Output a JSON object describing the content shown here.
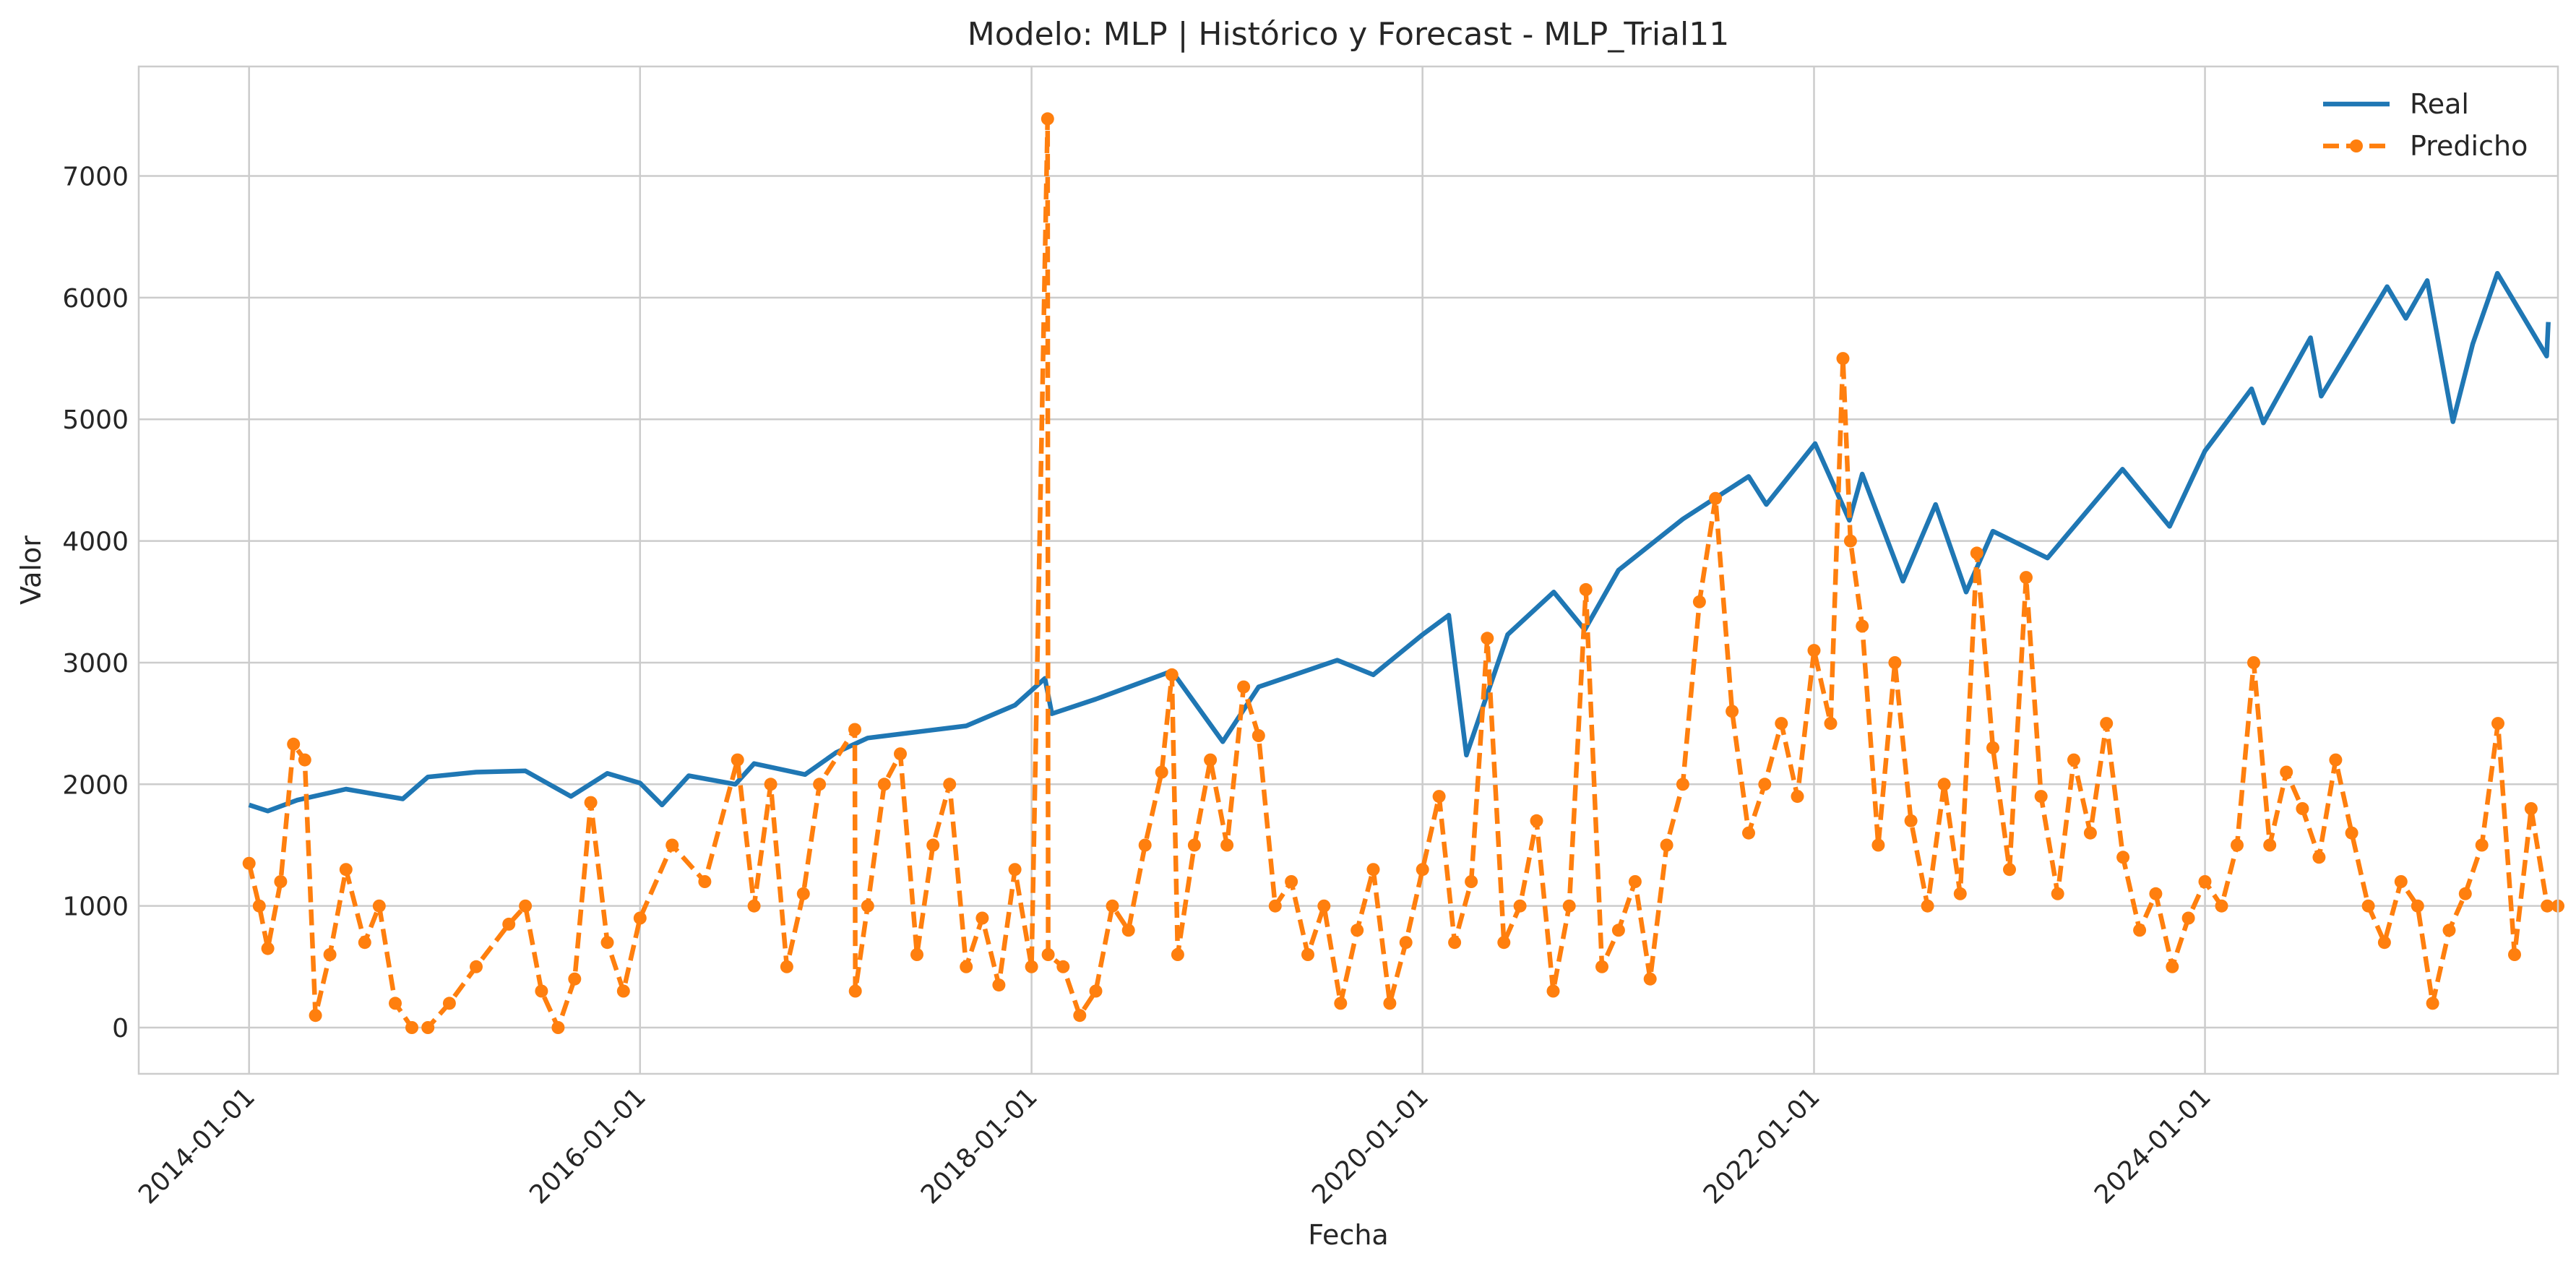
{
  "chart_data": {
    "type": "line",
    "title": "Modelo: MLP | Histórico y Forecast - MLP_Trial11",
    "xlabel": "Fecha",
    "ylabel": "Valor",
    "x_range": [
      "2013-06-09",
      "2025-10-21"
    ],
    "ylim": [
      -380,
      7900
    ],
    "x_ticks": [
      "2014-01-01",
      "2016-01-01",
      "2018-01-01",
      "2020-01-01",
      "2022-01-01",
      "2024-01-01"
    ],
    "y_ticks": [
      0,
      1000,
      2000,
      3000,
      4000,
      5000,
      6000,
      7000
    ],
    "grid": true,
    "legend": "top-right",
    "colors": {
      "real": "#1f77b4",
      "predicho": "#ff7f0e",
      "grid": "#cccccc",
      "frame": "#cccccc"
    },
    "series": [
      {
        "name": "Real",
        "style": "solid",
        "points": [
          [
            "2014-01-01",
            1830
          ],
          [
            "2014-02-05",
            1780
          ],
          [
            "2014-04-01",
            1870
          ],
          [
            "2014-07-01",
            1960
          ],
          [
            "2014-10-15",
            1880
          ],
          [
            "2014-12-01",
            2060
          ],
          [
            "2015-03-01",
            2100
          ],
          [
            "2015-06-01",
            2110
          ],
          [
            "2015-08-25",
            1900
          ],
          [
            "2015-11-01",
            2090
          ],
          [
            "2016-01-01",
            2010
          ],
          [
            "2016-02-11",
            1830
          ],
          [
            "2016-04-01",
            2070
          ],
          [
            "2016-06-27",
            2000
          ],
          [
            "2016-08-01",
            2170
          ],
          [
            "2016-11-04",
            2080
          ],
          [
            "2017-01-01",
            2260
          ],
          [
            "2017-03-01",
            2380
          ],
          [
            "2017-06-01",
            2430
          ],
          [
            "2017-09-01",
            2480
          ],
          [
            "2017-12-01",
            2650
          ],
          [
            "2018-01-26",
            2870
          ],
          [
            "2018-02-08",
            2580
          ],
          [
            "2018-05-01",
            2700
          ],
          [
            "2018-09-20",
            2930
          ],
          [
            "2018-12-24",
            2350
          ],
          [
            "2019-03-01",
            2800
          ],
          [
            "2019-07-26",
            3020
          ],
          [
            "2019-10-01",
            2900
          ],
          [
            "2020-01-01",
            3230
          ],
          [
            "2020-02-19",
            3390
          ],
          [
            "2020-03-23",
            2240
          ],
          [
            "2020-06-08",
            3230
          ],
          [
            "2020-09-02",
            3580
          ],
          [
            "2020-10-30",
            3270
          ],
          [
            "2021-01-01",
            3760
          ],
          [
            "2021-05-01",
            4180
          ],
          [
            "2021-09-01",
            4530
          ],
          [
            "2021-10-04",
            4300
          ],
          [
            "2022-01-03",
            4800
          ],
          [
            "2022-03-08",
            4170
          ],
          [
            "2022-04-01",
            4550
          ],
          [
            "2022-06-16",
            3670
          ],
          [
            "2022-08-16",
            4300
          ],
          [
            "2022-10-12",
            3580
          ],
          [
            "2022-12-01",
            4080
          ],
          [
            "2023-03-13",
            3860
          ],
          [
            "2023-07-31",
            4590
          ],
          [
            "2023-10-27",
            4120
          ],
          [
            "2024-01-01",
            4740
          ],
          [
            "2024-03-28",
            5250
          ],
          [
            "2024-04-19",
            4970
          ],
          [
            "2024-07-16",
            5670
          ],
          [
            "2024-08-05",
            5190
          ],
          [
            "2024-12-06",
            6090
          ],
          [
            "2025-01-10",
            5830
          ],
          [
            "2025-02-19",
            6140
          ],
          [
            "2025-04-08",
            4980
          ],
          [
            "2025-05-15",
            5620
          ],
          [
            "2025-06-30",
            6200
          ],
          [
            "2025-09-30",
            5520
          ],
          [
            "2025-10-03",
            5800
          ]
        ]
      },
      {
        "name": "Predicho",
        "style": "dashed-dot",
        "points": [
          [
            "2014-01-01",
            1350
          ],
          [
            "2014-01-20",
            1000
          ],
          [
            "2014-02-05",
            650
          ],
          [
            "2014-03-01",
            1200
          ],
          [
            "2014-03-25",
            2330
          ],
          [
            "2014-04-15",
            2200
          ],
          [
            "2014-05-05",
            100
          ],
          [
            "2014-06-01",
            600
          ],
          [
            "2014-07-01",
            1300
          ],
          [
            "2014-08-05",
            700
          ],
          [
            "2014-09-01",
            1000
          ],
          [
            "2014-10-01",
            200
          ],
          [
            "2014-11-01",
            0
          ],
          [
            "2014-12-01",
            0
          ],
          [
            "2015-01-10",
            200
          ],
          [
            "2015-03-01",
            500
          ],
          [
            "2015-05-01",
            850
          ],
          [
            "2015-06-01",
            1000
          ],
          [
            "2015-07-01",
            300
          ],
          [
            "2015-08-01",
            0
          ],
          [
            "2015-09-01",
            400
          ],
          [
            "2015-10-01",
            1850
          ],
          [
            "2015-11-01",
            700
          ],
          [
            "2015-12-01",
            300
          ],
          [
            "2016-01-01",
            900
          ],
          [
            "2016-03-01",
            1500
          ],
          [
            "2016-05-01",
            1200
          ],
          [
            "2016-07-01",
            2200
          ],
          [
            "2016-08-01",
            1000
          ],
          [
            "2016-09-01",
            2000
          ],
          [
            "2016-10-01",
            500
          ],
          [
            "2016-11-01",
            1100
          ],
          [
            "2016-12-01",
            2000
          ],
          [
            "2017-02-05",
            2450
          ],
          [
            "2017-02-06",
            300
          ],
          [
            "2017-03-01",
            1000
          ],
          [
            "2017-04-01",
            2000
          ],
          [
            "2017-05-01",
            2250
          ],
          [
            "2017-06-01",
            600
          ],
          [
            "2017-07-01",
            1500
          ],
          [
            "2017-08-01",
            2000
          ],
          [
            "2017-09-01",
            500
          ],
          [
            "2017-10-01",
            900
          ],
          [
            "2017-11-01",
            350
          ],
          [
            "2017-12-01",
            1300
          ],
          [
            "2018-01-01",
            500
          ],
          [
            "2018-01-31",
            7470
          ],
          [
            "2018-02-01",
            600
          ],
          [
            "2018-03-01",
            500
          ],
          [
            "2018-04-01",
            100
          ],
          [
            "2018-05-01",
            300
          ],
          [
            "2018-06-01",
            1000
          ],
          [
            "2018-07-01",
            800
          ],
          [
            "2018-08-01",
            1500
          ],
          [
            "2018-09-01",
            2100
          ],
          [
            "2018-09-20",
            2900
          ],
          [
            "2018-10-01",
            600
          ],
          [
            "2018-11-01",
            1500
          ],
          [
            "2018-12-01",
            2200
          ],
          [
            "2019-01-01",
            1500
          ],
          [
            "2019-02-01",
            2800
          ],
          [
            "2019-03-01",
            2400
          ],
          [
            "2019-04-01",
            1000
          ],
          [
            "2019-05-01",
            1200
          ],
          [
            "2019-06-01",
            600
          ],
          [
            "2019-07-01",
            1000
          ],
          [
            "2019-08-01",
            200
          ],
          [
            "2019-09-01",
            800
          ],
          [
            "2019-10-01",
            1300
          ],
          [
            "2019-11-01",
            200
          ],
          [
            "2019-12-01",
            700
          ],
          [
            "2020-01-01",
            1300
          ],
          [
            "2020-02-01",
            1900
          ],
          [
            "2020-03-01",
            700
          ],
          [
            "2020-04-01",
            1200
          ],
          [
            "2020-05-01",
            3200
          ],
          [
            "2020-06-01",
            700
          ],
          [
            "2020-07-01",
            1000
          ],
          [
            "2020-08-01",
            1700
          ],
          [
            "2020-09-01",
            300
          ],
          [
            "2020-10-01",
            1000
          ],
          [
            "2020-11-01",
            3600
          ],
          [
            "2020-12-01",
            500
          ],
          [
            "2021-01-01",
            800
          ],
          [
            "2021-02-01",
            1200
          ],
          [
            "2021-03-01",
            400
          ],
          [
            "2021-04-01",
            1500
          ],
          [
            "2021-05-01",
            2000
          ],
          [
            "2021-06-01",
            3500
          ],
          [
            "2021-07-01",
            4350
          ],
          [
            "2021-08-01",
            2600
          ],
          [
            "2021-09-01",
            1600
          ],
          [
            "2021-10-01",
            2000
          ],
          [
            "2021-11-01",
            2500
          ],
          [
            "2021-12-01",
            1900
          ],
          [
            "2022-01-01",
            3100
          ],
          [
            "2022-02-01",
            2500
          ],
          [
            "2022-02-24",
            5500
          ],
          [
            "2022-03-10",
            4000
          ],
          [
            "2022-04-01",
            3300
          ],
          [
            "2022-05-01",
            1500
          ],
          [
            "2022-06-01",
            3000
          ],
          [
            "2022-07-01",
            1700
          ],
          [
            "2022-08-01",
            1000
          ],
          [
            "2022-09-01",
            2000
          ],
          [
            "2022-10-01",
            1100
          ],
          [
            "2022-11-01",
            3900
          ],
          [
            "2022-12-01",
            2300
          ],
          [
            "2023-01-01",
            1300
          ],
          [
            "2023-02-01",
            3700
          ],
          [
            "2023-03-01",
            1900
          ],
          [
            "2023-04-01",
            1100
          ],
          [
            "2023-05-01",
            2200
          ],
          [
            "2023-06-01",
            1600
          ],
          [
            "2023-07-01",
            2500
          ],
          [
            "2023-08-01",
            1400
          ],
          [
            "2023-09-01",
            800
          ],
          [
            "2023-10-01",
            1100
          ],
          [
            "2023-11-01",
            500
          ],
          [
            "2023-12-01",
            900
          ],
          [
            "2024-01-01",
            1200
          ],
          [
            "2024-02-01",
            1000
          ],
          [
            "2024-03-01",
            1500
          ],
          [
            "2024-04-01",
            3000
          ],
          [
            "2024-05-01",
            1500
          ],
          [
            "2024-06-01",
            2100
          ],
          [
            "2024-07-01",
            1800
          ],
          [
            "2024-08-01",
            1400
          ],
          [
            "2024-09-01",
            2200
          ],
          [
            "2024-10-01",
            1600
          ],
          [
            "2024-11-01",
            1000
          ],
          [
            "2024-12-01",
            700
          ],
          [
            "2025-01-01",
            1200
          ],
          [
            "2025-02-01",
            1000
          ],
          [
            "2025-03-01",
            200
          ],
          [
            "2025-04-01",
            800
          ],
          [
            "2025-05-01",
            1100
          ],
          [
            "2025-06-01",
            1500
          ],
          [
            "2025-07-01",
            2500
          ],
          [
            "2025-08-01",
            600
          ],
          [
            "2025-09-01",
            1800
          ],
          [
            "2025-10-01",
            1000
          ],
          [
            "2025-10-21",
            1000
          ]
        ]
      }
    ]
  }
}
